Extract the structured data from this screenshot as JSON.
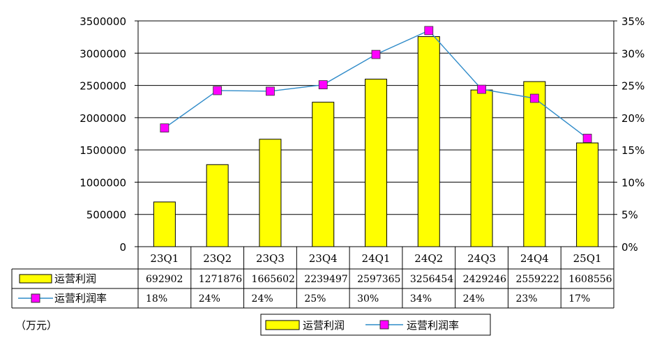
{
  "chart_data": {
    "type": "bar",
    "categories": [
      "23Q1",
      "23Q2",
      "23Q3",
      "23Q4",
      "24Q1",
      "24Q2",
      "24Q3",
      "24Q4",
      "25Q1"
    ],
    "series": [
      {
        "name": "运营利润",
        "type": "bar",
        "axis": "left",
        "values": [
          692902,
          1271876,
          1665602,
          2239497,
          2597365,
          3256454,
          2429246,
          2559222,
          1608556
        ],
        "color": "#ffff00"
      },
      {
        "name": "运营利润率",
        "type": "line",
        "axis": "right",
        "values": [
          18,
          24,
          24,
          25,
          30,
          34,
          24,
          23,
          17
        ],
        "plotted": [
          18.4,
          24.2,
          24.1,
          25.1,
          29.8,
          33.5,
          24.4,
          23.0,
          16.8
        ],
        "color": "#ff00ff",
        "line_color": "#2f8bc9"
      }
    ],
    "ylim": [
      0,
      3500000
    ],
    "yticks": [
      "0",
      "500000",
      "1000000",
      "1500000",
      "2000000",
      "2500000",
      "3000000",
      "3500000"
    ],
    "y2lim": [
      0,
      35
    ],
    "y2ticks": [
      "0%",
      "5%",
      "10%",
      "15%",
      "20%",
      "25%",
      "30%",
      "35%"
    ],
    "table": {
      "rows": [
        {
          "label": "运营利润",
          "cells": [
            "692902",
            "1271876",
            "1665602",
            "2239497",
            "2597365",
            "3256454",
            "2429246",
            "2559222",
            "1608556"
          ]
        },
        {
          "label": "运营利润率",
          "cells": [
            "18%",
            "24%",
            "24%",
            "25%",
            "30%",
            "34%",
            "24%",
            "23%",
            "17%"
          ]
        }
      ]
    },
    "legend": {
      "position": "bottom",
      "items": [
        "运营利润",
        "运营利润率"
      ]
    },
    "unit_label": "（万元）",
    "grid": true
  }
}
